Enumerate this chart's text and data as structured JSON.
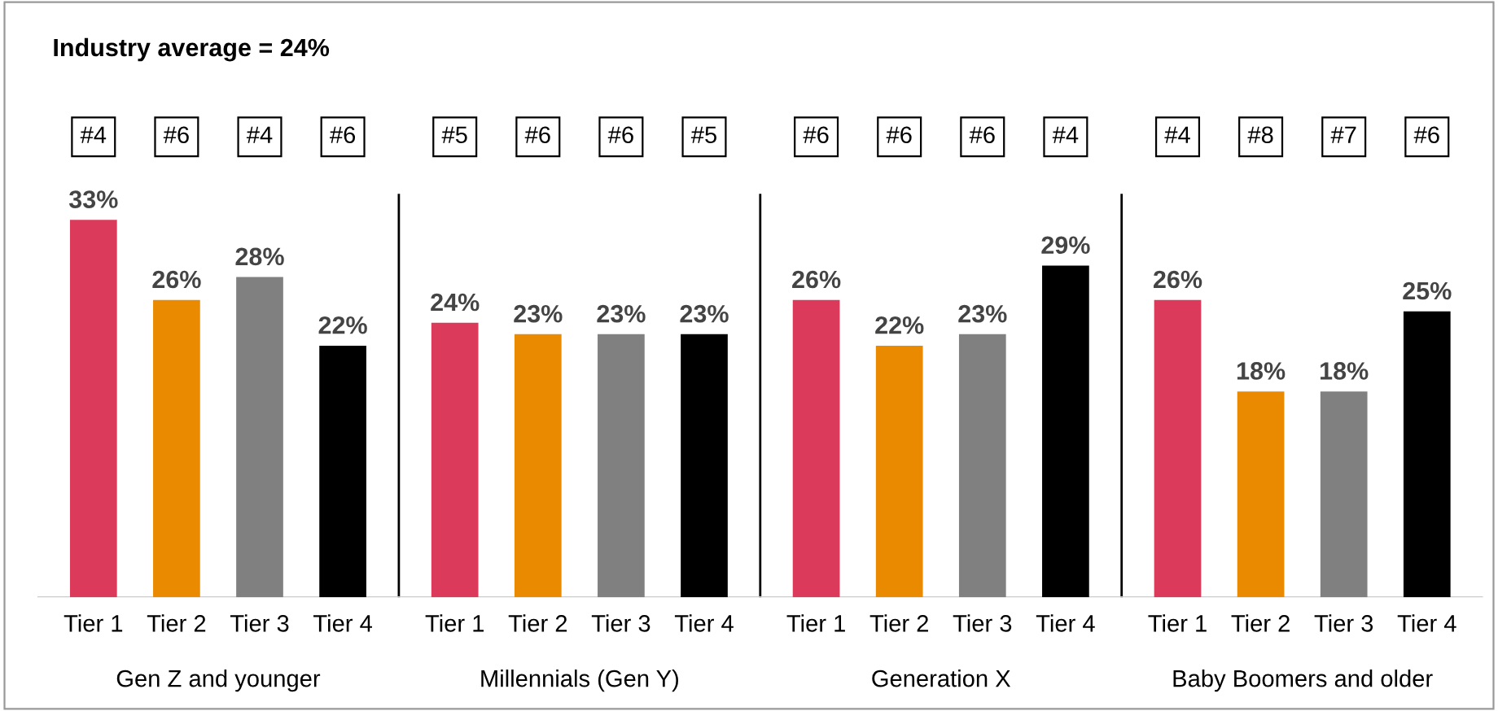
{
  "chart_data": {
    "type": "bar",
    "title": "Industry average = 24%",
    "categories": [
      "Gen Z and younger",
      "Millennials (Gen Y)",
      "Generation X",
      "Baby Boomers and older"
    ],
    "series": [
      {
        "name": "Tier 1",
        "color": "#dc3a5a",
        "values": [
          33,
          24,
          26,
          26
        ],
        "value_labels": [
          "33%",
          "24%",
          "26%",
          "26%"
        ]
      },
      {
        "name": "Tier 2",
        "color": "#ea8a00",
        "values": [
          26,
          23,
          22,
          18
        ],
        "value_labels": [
          "26%",
          "23%",
          "22%",
          "18%"
        ]
      },
      {
        "name": "Tier 3",
        "color": "#808080",
        "values": [
          28,
          23,
          23,
          18
        ],
        "value_labels": [
          "28%",
          "23%",
          "23%",
          "18%"
        ]
      },
      {
        "name": "Tier 4",
        "color": "#000000",
        "values": [
          22,
          23,
          29,
          25
        ],
        "value_labels": [
          "22%",
          "23%",
          "29%",
          "25%"
        ]
      }
    ],
    "annotations": [
      "#4",
      "#6",
      "#4",
      "#6",
      "#5",
      "#6",
      "#6",
      "#5",
      "#6",
      "#6",
      "#6",
      "#4",
      "#4",
      "#8",
      "#7",
      "#6"
    ]
  }
}
